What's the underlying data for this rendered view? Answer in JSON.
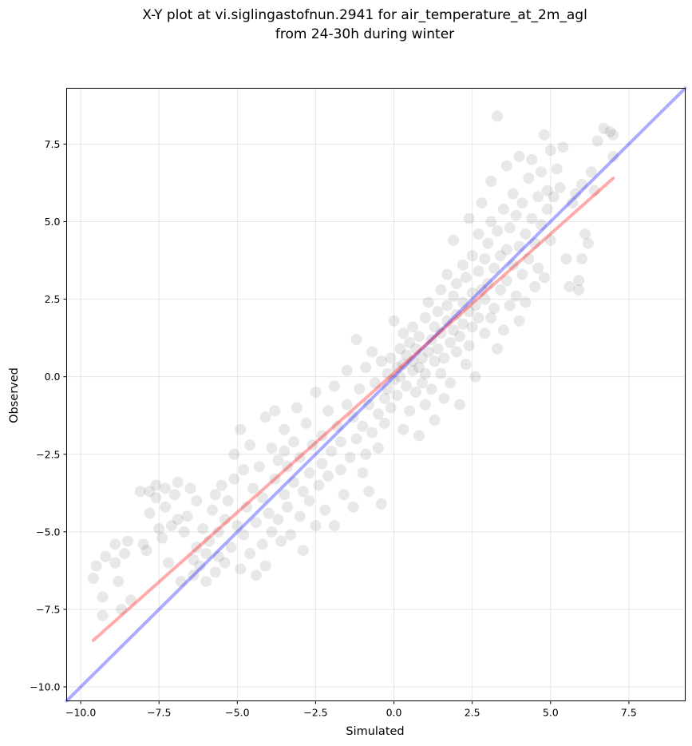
{
  "chart_data": {
    "type": "scatter",
    "title_line1": "X-Y plot at vi.siglingastofnun.2941 for air_temperature_at_2m_agl",
    "title_line2": "from 24-30h during winter",
    "xlabel": "Simulated",
    "ylabel": "Observed",
    "xlim": [
      -10.45,
      9.3
    ],
    "ylim": [
      -10.45,
      9.3
    ],
    "xticks": [
      -10.0,
      -7.5,
      -5.0,
      -2.5,
      0.0,
      2.5,
      5.0,
      7.5
    ],
    "yticks": [
      -10.0,
      -7.5,
      -5.0,
      -2.5,
      0.0,
      2.5,
      5.0,
      7.5
    ],
    "xtick_labels": [
      "−10.0",
      "−7.5",
      "−5.0",
      "−2.5",
      "0.0",
      "2.5",
      "5.0",
      "7.5"
    ],
    "ytick_labels": [
      "−10.0",
      "−7.5",
      "−5.0",
      "−2.5",
      "0.0",
      "2.5",
      "5.0",
      "7.5"
    ],
    "grid": true,
    "lines": [
      {
        "type": "identity",
        "color": "#0000ff",
        "x": [
          -10.45,
          9.3
        ],
        "y": [
          -10.45,
          9.3
        ]
      },
      {
        "type": "fit",
        "color": "#ff0000",
        "x": [
          -9.6,
          7.0
        ],
        "y": [
          -8.5,
          6.4
        ]
      }
    ],
    "point_color": "#000000",
    "points": [
      [
        -9.6,
        -6.5
      ],
      [
        -9.5,
        -6.1
      ],
      [
        -9.3,
        -7.7
      ],
      [
        -9.3,
        -7.1
      ],
      [
        -9.2,
        -5.8
      ],
      [
        -8.9,
        -5.4
      ],
      [
        -8.9,
        -6.0
      ],
      [
        -8.8,
        -6.6
      ],
      [
        -8.7,
        -7.5
      ],
      [
        -8.6,
        -5.7
      ],
      [
        -8.5,
        -5.3
      ],
      [
        -8.4,
        -7.2
      ],
      [
        -8.1,
        -3.7
      ],
      [
        -8.0,
        -5.4
      ],
      [
        -7.9,
        -5.6
      ],
      [
        -7.8,
        -4.4
      ],
      [
        -7.8,
        -3.7
      ],
      [
        -7.6,
        -3.9
      ],
      [
        -7.6,
        -3.5
      ],
      [
        -7.5,
        -4.9
      ],
      [
        -7.4,
        -5.2
      ],
      [
        -7.3,
        -4.2
      ],
      [
        -7.3,
        -3.6
      ],
      [
        -7.2,
        -6.0
      ],
      [
        -7.1,
        -4.8
      ],
      [
        -7.0,
        -3.8
      ],
      [
        -6.9,
        -4.6
      ],
      [
        -6.9,
        -3.4
      ],
      [
        -6.8,
        -6.6
      ],
      [
        -6.7,
        -5.0
      ],
      [
        -6.6,
        -4.5
      ],
      [
        -6.5,
        -3.6
      ],
      [
        -6.4,
        -5.9
      ],
      [
        -6.4,
        -6.4
      ],
      [
        -6.3,
        -4.0
      ],
      [
        -6.3,
        -5.5
      ],
      [
        -6.2,
        -6.1
      ],
      [
        -6.1,
        -4.9
      ],
      [
        -6.0,
        -6.6
      ],
      [
        -6.0,
        -5.7
      ],
      [
        -5.9,
        -5.3
      ],
      [
        -5.8,
        -4.3
      ],
      [
        -5.7,
        -6.3
      ],
      [
        -5.7,
        -3.8
      ],
      [
        -5.6,
        -5.0
      ],
      [
        -5.6,
        -5.8
      ],
      [
        -5.5,
        -3.5
      ],
      [
        -5.4,
        -4.6
      ],
      [
        -5.4,
        -6.0
      ],
      [
        -5.3,
        -4.0
      ],
      [
        -5.2,
        -5.5
      ],
      [
        -5.1,
        -2.5
      ],
      [
        -5.1,
        -3.3
      ],
      [
        -5.0,
        -4.8
      ],
      [
        -4.9,
        -6.2
      ],
      [
        -4.9,
        -1.7
      ],
      [
        -4.8,
        -3.0
      ],
      [
        -4.8,
        -5.1
      ],
      [
        -4.7,
        -4.2
      ],
      [
        -4.6,
        -5.7
      ],
      [
        -4.6,
        -2.2
      ],
      [
        -4.5,
        -3.6
      ],
      [
        -4.4,
        -6.4
      ],
      [
        -4.4,
        -4.7
      ],
      [
        -4.3,
        -2.9
      ],
      [
        -4.2,
        -5.4
      ],
      [
        -4.2,
        -3.9
      ],
      [
        -4.1,
        -1.3
      ],
      [
        -4.1,
        -6.1
      ],
      [
        -4.0,
        -4.4
      ],
      [
        -3.9,
        -2.3
      ],
      [
        -3.9,
        -5.0
      ],
      [
        -3.8,
        -3.3
      ],
      [
        -3.8,
        -1.1
      ],
      [
        -3.7,
        -2.7
      ],
      [
        -3.7,
        -4.6
      ],
      [
        -3.6,
        -5.3
      ],
      [
        -3.5,
        -2.4
      ],
      [
        -3.5,
        -3.8
      ],
      [
        -3.5,
        -1.7
      ],
      [
        -3.4,
        -2.9
      ],
      [
        -3.4,
        -4.2
      ],
      [
        -3.3,
        -5.1
      ],
      [
        -3.2,
        -2.1
      ],
      [
        -3.2,
        -3.4
      ],
      [
        -3.1,
        -1.0
      ],
      [
        -3.0,
        -4.5
      ],
      [
        -3.0,
        -2.6
      ],
      [
        -2.9,
        -3.7
      ],
      [
        -2.9,
        -5.6
      ],
      [
        -2.8,
        -1.5
      ],
      [
        -2.7,
        -3.1
      ],
      [
        -2.7,
        -4.0
      ],
      [
        -2.6,
        -2.2
      ],
      [
        -2.5,
        -4.8
      ],
      [
        -2.5,
        -0.5
      ],
      [
        -2.4,
        -3.5
      ],
      [
        -2.3,
        -1.9
      ],
      [
        -2.3,
        -2.8
      ],
      [
        -2.2,
        -4.3
      ],
      [
        -2.1,
        -1.1
      ],
      [
        -2.1,
        -3.2
      ],
      [
        -2.0,
        -2.4
      ],
      [
        -1.9,
        -4.8
      ],
      [
        -1.9,
        -0.3
      ],
      [
        -1.8,
        -1.6
      ],
      [
        -1.7,
        -3.0
      ],
      [
        -1.7,
        -2.1
      ],
      [
        -1.6,
        -3.8
      ],
      [
        -1.5,
        -0.9
      ],
      [
        -1.5,
        0.2
      ],
      [
        -1.4,
        -2.6
      ],
      [
        -1.3,
        -1.3
      ],
      [
        -1.3,
        -4.2
      ],
      [
        -1.2,
        1.2
      ],
      [
        -1.2,
        -2.0
      ],
      [
        -1.1,
        -0.4
      ],
      [
        -1.0,
        -3.1
      ],
      [
        -1.0,
        -1.6
      ],
      [
        -0.9,
        0.3
      ],
      [
        -0.9,
        -2.5
      ],
      [
        -0.8,
        -0.9
      ],
      [
        -0.8,
        -3.7
      ],
      [
        -0.7,
        -1.8
      ],
      [
        -0.7,
        0.8
      ],
      [
        -0.6,
        -0.2
      ],
      [
        -0.5,
        -2.3
      ],
      [
        -0.5,
        -1.2
      ],
      [
        -0.4,
        0.5
      ],
      [
        -0.4,
        -4.1
      ],
      [
        -0.3,
        -0.7
      ],
      [
        -0.3,
        -1.5
      ],
      [
        -0.2,
        0.1
      ],
      [
        -0.2,
        -0.4
      ],
      [
        -0.1,
        0.6
      ],
      [
        -0.1,
        -1.0
      ],
      [
        0.0,
        -0.1
      ],
      [
        0.0,
        1.8
      ],
      [
        0.1,
        0.3
      ],
      [
        0.1,
        -0.6
      ],
      [
        0.2,
        0.9
      ],
      [
        0.2,
        0.0
      ],
      [
        0.3,
        -1.7
      ],
      [
        0.3,
        1.4
      ],
      [
        0.3,
        0.4
      ],
      [
        0.4,
        -0.3
      ],
      [
        0.4,
        0.7
      ],
      [
        0.5,
        1.1
      ],
      [
        0.5,
        -1.1
      ],
      [
        0.6,
        0.2
      ],
      [
        0.6,
        0.5
      ],
      [
        0.6,
        1.6
      ],
      [
        0.7,
        -0.5
      ],
      [
        0.7,
        0.9
      ],
      [
        0.8,
        0.3
      ],
      [
        0.8,
        -1.9
      ],
      [
        0.8,
        1.3
      ],
      [
        0.9,
        0.6
      ],
      [
        0.9,
        -0.2
      ],
      [
        1.0,
        1.9
      ],
      [
        1.0,
        0.1
      ],
      [
        1.0,
        -0.9
      ],
      [
        1.1,
        0.8
      ],
      [
        1.1,
        2.4
      ],
      [
        1.2,
        1.2
      ],
      [
        1.2,
        -0.4
      ],
      [
        1.3,
        0.5
      ],
      [
        1.3,
        1.6
      ],
      [
        1.3,
        -1.4
      ],
      [
        1.4,
        2.1
      ],
      [
        1.4,
        0.9
      ],
      [
        1.5,
        0.1
      ],
      [
        1.5,
        2.8
      ],
      [
        1.5,
        1.4
      ],
      [
        1.6,
        -0.7
      ],
      [
        1.6,
        0.6
      ],
      [
        1.7,
        1.8
      ],
      [
        1.7,
        3.3
      ],
      [
        1.7,
        2.3
      ],
      [
        1.8,
        1.1
      ],
      [
        1.8,
        -0.2
      ],
      [
        1.9,
        2.6
      ],
      [
        1.9,
        1.5
      ],
      [
        1.9,
        4.4
      ],
      [
        2.0,
        0.8
      ],
      [
        2.0,
        3.0
      ],
      [
        2.0,
        2.0
      ],
      [
        2.1,
        1.3
      ],
      [
        2.1,
        -0.9
      ],
      [
        2.2,
        3.6
      ],
      [
        2.2,
        2.4
      ],
      [
        2.2,
        1.7
      ],
      [
        2.3,
        0.4
      ],
      [
        2.3,
        3.2
      ],
      [
        2.4,
        2.1
      ],
      [
        2.4,
        5.1
      ],
      [
        2.4,
        1.0
      ],
      [
        2.5,
        2.7
      ],
      [
        2.5,
        3.9
      ],
      [
        2.5,
        1.6
      ],
      [
        2.6,
        2.3
      ],
      [
        2.6,
        0.0
      ],
      [
        2.7,
        3.4
      ],
      [
        2.7,
        4.6
      ],
      [
        2.7,
        1.9
      ],
      [
        2.8,
        2.8
      ],
      [
        2.8,
        5.6
      ],
      [
        2.9,
        1.4
      ],
      [
        2.9,
        3.8
      ],
      [
        2.9,
        2.5
      ],
      [
        3.0,
        4.3
      ],
      [
        3.0,
        3.0
      ],
      [
        3.1,
        1.9
      ],
      [
        3.1,
        6.3
      ],
      [
        3.1,
        5.0
      ],
      [
        3.2,
        3.5
      ],
      [
        3.2,
        2.2
      ],
      [
        3.3,
        4.7
      ],
      [
        3.3,
        8.4
      ],
      [
        3.3,
        0.9
      ],
      [
        3.4,
        3.9
      ],
      [
        3.4,
        2.8
      ],
      [
        3.5,
        5.4
      ],
      [
        3.5,
        1.5
      ],
      [
        3.6,
        4.1
      ],
      [
        3.6,
        3.1
      ],
      [
        3.6,
        6.8
      ],
      [
        3.7,
        2.3
      ],
      [
        3.7,
        4.8
      ],
      [
        3.8,
        5.9
      ],
      [
        3.8,
        3.6
      ],
      [
        3.9,
        2.6
      ],
      [
        3.9,
        5.2
      ],
      [
        4.0,
        4.2
      ],
      [
        4.0,
        1.8
      ],
      [
        4.0,
        7.1
      ],
      [
        4.1,
        3.3
      ],
      [
        4.1,
        5.6
      ],
      [
        4.2,
        4.6
      ],
      [
        4.2,
        2.4
      ],
      [
        4.3,
        6.4
      ],
      [
        4.3,
        3.8
      ],
      [
        4.4,
        5.1
      ],
      [
        4.4,
        7.0
      ],
      [
        4.5,
        4.3
      ],
      [
        4.5,
        2.9
      ],
      [
        4.6,
        5.8
      ],
      [
        4.6,
        3.5
      ],
      [
        4.7,
        6.6
      ],
      [
        4.7,
        4.9
      ],
      [
        4.8,
        7.8
      ],
      [
        4.8,
        3.2
      ],
      [
        4.9,
        5.4
      ],
      [
        4.9,
        6.0
      ],
      [
        5.0,
        4.4
      ],
      [
        5.0,
        7.3
      ],
      [
        5.1,
        5.8
      ],
      [
        5.2,
        6.7
      ],
      [
        5.3,
        6.1
      ],
      [
        5.4,
        7.4
      ],
      [
        5.5,
        3.8
      ],
      [
        5.6,
        2.9
      ],
      [
        5.7,
        5.6
      ],
      [
        5.8,
        5.9
      ],
      [
        5.9,
        3.1
      ],
      [
        5.9,
        2.8
      ],
      [
        6.0,
        6.2
      ],
      [
        6.0,
        3.8
      ],
      [
        6.1,
        4.6
      ],
      [
        6.2,
        4.3
      ],
      [
        6.3,
        6.6
      ],
      [
        6.4,
        6.0
      ],
      [
        6.5,
        7.6
      ],
      [
        6.7,
        8.0
      ],
      [
        6.9,
        7.9
      ],
      [
        7.0,
        7.8
      ],
      [
        7.0,
        7.1
      ]
    ]
  }
}
